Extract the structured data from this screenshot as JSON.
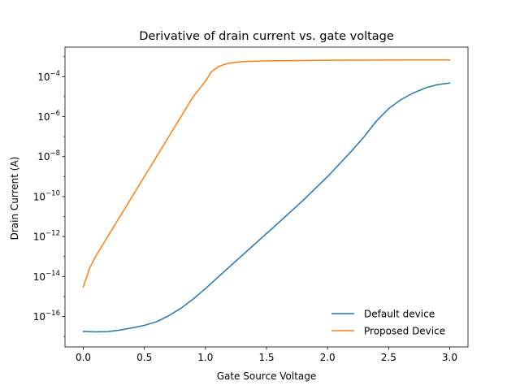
{
  "chart_data": {
    "type": "line",
    "title": "Derivative of drain current vs. gate voltage",
    "xlabel": "Gate Source Voltage",
    "ylabel": "Drain Current (A)",
    "xlim": [
      -0.15,
      3.15
    ],
    "ylim": [
      3e-18,
      0.003
    ],
    "yscale": "log",
    "grid": false,
    "legend_position": "lower-right",
    "x_ticks": [
      0.0,
      0.5,
      1.0,
      1.5,
      2.0,
      2.5,
      3.0
    ],
    "x_tick_labels": [
      "0.0",
      "0.5",
      "1.0",
      "1.5",
      "2.0",
      "2.5",
      "3.0"
    ],
    "y_ticks": [
      {
        "exp": "-16",
        "value": 1e-16
      },
      {
        "exp": "-14",
        "value": 1e-14
      },
      {
        "exp": "-12",
        "value": 1e-12
      },
      {
        "exp": "-10",
        "value": 1e-10
      },
      {
        "exp": "-8",
        "value": 1e-08
      },
      {
        "exp": "-6",
        "value": 1e-06
      },
      {
        "exp": "-4",
        "value": 0.0001
      }
    ],
    "y_tick_base": "10",
    "series": [
      {
        "name": "Default device",
        "color": "#1f77b4",
        "x": [
          0.0,
          0.1,
          0.2,
          0.3,
          0.4,
          0.5,
          0.6,
          0.7,
          0.8,
          0.9,
          1.0,
          1.2,
          1.4,
          1.6,
          1.8,
          2.0,
          2.2,
          2.3,
          2.4,
          2.5,
          2.6,
          2.7,
          2.8,
          2.9,
          3.0
        ],
        "y": [
          1.8e-17,
          1.7e-17,
          1.75e-17,
          2.1e-17,
          2.7e-17,
          3.6e-17,
          5.5e-17,
          1.1e-16,
          2.6e-16,
          7.5e-16,
          2.5e-15,
          3.2e-14,
          4e-13,
          5e-12,
          6.5e-11,
          1e-09,
          2e-08,
          1e-07,
          6e-07,
          2.5e-06,
          7e-06,
          1.5e-05,
          2.7e-05,
          4e-05,
          4.8e-05
        ]
      },
      {
        "name": "Proposed Device",
        "color": "#ff7f0e",
        "x": [
          0.0,
          0.05,
          0.1,
          0.2,
          0.3,
          0.4,
          0.5,
          0.6,
          0.7,
          0.8,
          0.9,
          1.0,
          1.05,
          1.1,
          1.15,
          1.2,
          1.3,
          1.5,
          2.0,
          2.5,
          3.0
        ],
        "y": [
          3e-15,
          2.5e-14,
          1e-13,
          1e-12,
          1e-11,
          1e-10,
          1e-09,
          1e-08,
          1e-07,
          1e-06,
          1e-05,
          6e-05,
          0.00018,
          0.0003,
          0.0004,
          0.00048,
          0.00056,
          0.00062,
          0.00066,
          0.00068,
          0.00069
        ]
      }
    ]
  }
}
